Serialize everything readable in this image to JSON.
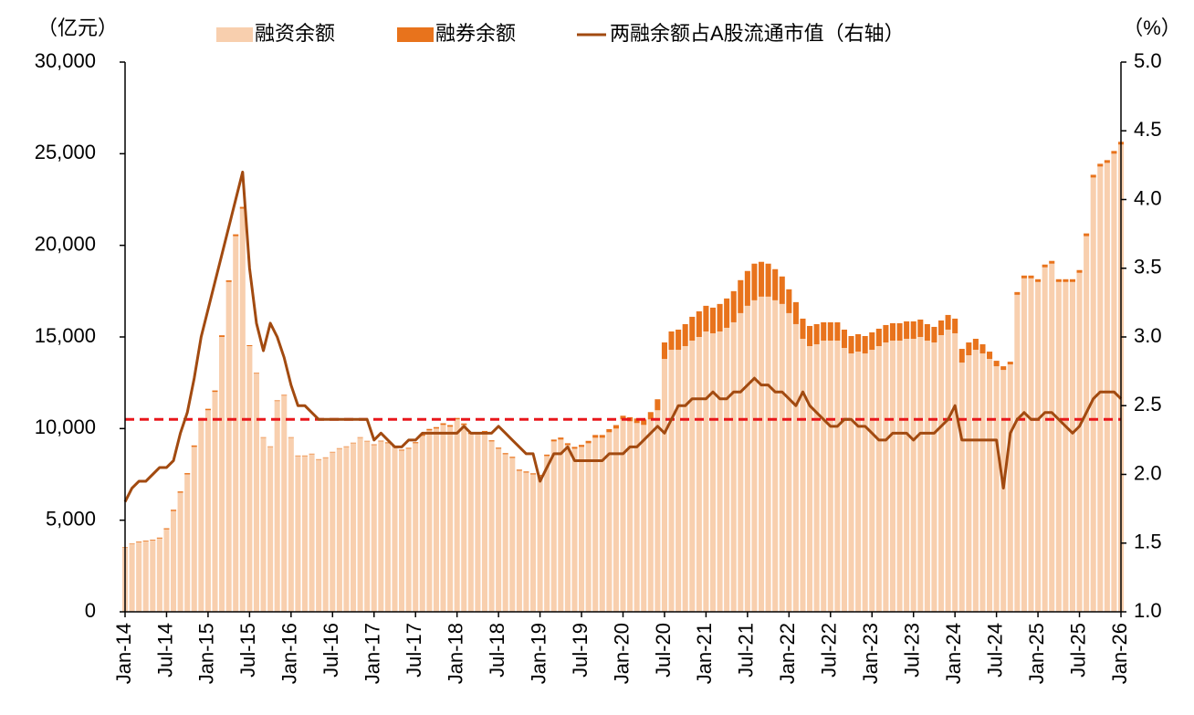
{
  "chart_data": {
    "type": "bar",
    "y_label": "（亿元）",
    "y2_label": "（%）",
    "categories": [
      "Jan-14",
      null,
      null,
      null,
      null,
      null,
      "Jul-14",
      null,
      null,
      null,
      null,
      null,
      "Jan-15",
      null,
      null,
      null,
      null,
      null,
      "Jul-15",
      null,
      null,
      null,
      null,
      null,
      "Jan-16",
      null,
      null,
      null,
      null,
      null,
      "Jul-16",
      null,
      null,
      null,
      null,
      null,
      "Jan-17",
      null,
      null,
      null,
      null,
      null,
      "Jul-17",
      null,
      null,
      null,
      null,
      null,
      "Jan-18",
      null,
      null,
      null,
      null,
      null,
      "Jul-18",
      null,
      null,
      null,
      null,
      null,
      "Jan-19",
      null,
      null,
      null,
      null,
      null,
      "Jul-19",
      null,
      null,
      null,
      null,
      null,
      "Jan-20",
      null,
      null,
      null,
      null,
      null,
      "Jul-20",
      null,
      null,
      null,
      null,
      null,
      "Jan-21",
      null,
      null,
      null,
      null,
      null,
      "Jul-21",
      null,
      null,
      null,
      null,
      null,
      "Jan-22",
      null,
      null,
      null,
      null,
      null,
      "Jul-22",
      null,
      null,
      null,
      null,
      null,
      "Jan-23",
      null,
      null,
      null,
      null,
      null,
      "Jul-23",
      null,
      null,
      null,
      null,
      null,
      "Jan-24",
      null,
      null,
      null,
      null,
      null,
      "Jul-24",
      null,
      null,
      null,
      null,
      null,
      "Jan-25",
      null,
      null,
      null,
      null,
      null,
      "Jul-25",
      null,
      null,
      null,
      null,
      null,
      "Jan-26"
    ],
    "series": [
      {
        "name": "融资余额",
        "type": "bar",
        "color": "#f8cfae",
        "values": [
          3500,
          3700,
          3800,
          3850,
          3900,
          4000,
          4500,
          5500,
          6500,
          7500,
          9000,
          10500,
          11000,
          12000,
          15000,
          18000,
          20500,
          22000,
          14500,
          13000,
          9500,
          9000,
          11500,
          11800,
          9500,
          8500,
          8500,
          8600,
          8300,
          8400,
          8700,
          8900,
          9000,
          9200,
          9500,
          9300,
          9100,
          9300,
          9200,
          9000,
          8800,
          8900,
          9200,
          9600,
          9900,
          10000,
          10200,
          10100,
          10500,
          10200,
          9700,
          9700,
          9800,
          9300,
          8900,
          8600,
          8400,
          7700,
          7600,
          7500,
          7400,
          8500,
          9300,
          9400,
          9100,
          8900,
          9000,
          9200,
          9500,
          9500,
          9800,
          10000,
          10500,
          10400,
          10300,
          10200,
          10500,
          11000,
          13800,
          14300,
          14300,
          14500,
          14800,
          15000,
          15300,
          15200,
          15300,
          15500,
          15800,
          16300,
          16700,
          17000,
          17200,
          17200,
          17000,
          16800,
          16300,
          15700,
          14900,
          14500,
          14600,
          14800,
          14800,
          14800,
          14400,
          14100,
          14200,
          14100,
          14300,
          14500,
          14700,
          14800,
          14800,
          14900,
          14900,
          15000,
          14800,
          14700,
          15100,
          15400,
          15200,
          13600,
          14000,
          14300,
          14100,
          13800,
          13400,
          13200,
          13500,
          17300,
          18200,
          18200,
          18000,
          18800,
          19000,
          18000,
          18000,
          18000,
          18500,
          20500,
          23700,
          24300,
          24500,
          25000,
          25500
        ]
      },
      {
        "name": "融券余额",
        "type": "bar",
        "color": "#e8731c",
        "values": [
          30,
          30,
          40,
          40,
          40,
          50,
          60,
          70,
          70,
          70,
          80,
          80,
          80,
          80,
          90,
          90,
          100,
          100,
          50,
          40,
          30,
          30,
          40,
          40,
          30,
          30,
          30,
          30,
          30,
          30,
          30,
          30,
          30,
          30,
          30,
          30,
          40,
          40,
          50,
          50,
          50,
          50,
          60,
          70,
          80,
          80,
          90,
          90,
          80,
          80,
          70,
          70,
          70,
          60,
          60,
          60,
          60,
          60,
          60,
          60,
          70,
          80,
          100,
          110,
          100,
          100,
          110,
          130,
          150,
          150,
          170,
          190,
          200,
          220,
          250,
          300,
          400,
          600,
          900,
          1000,
          1100,
          1200,
          1300,
          1400,
          1400,
          1400,
          1500,
          1600,
          1700,
          1800,
          1900,
          2000,
          1900,
          1800,
          1700,
          1500,
          1300,
          1200,
          1100,
          1100,
          1100,
          1000,
          1000,
          1000,
          1000,
          950,
          950,
          950,
          950,
          950,
          950,
          950,
          950,
          950,
          950,
          950,
          900,
          850,
          800,
          800,
          800,
          750,
          700,
          600,
          500,
          400,
          300,
          200,
          150,
          150,
          150,
          150,
          150,
          150,
          150,
          150,
          150,
          150,
          150,
          150,
          150,
          150,
          150,
          150,
          150
        ]
      },
      {
        "name": "两融余额占A股流通市值（右轴）",
        "type": "line",
        "axis": "y2",
        "color": "#a24a10",
        "values": [
          1.8,
          1.9,
          1.95,
          1.95,
          2.0,
          2.05,
          2.05,
          2.1,
          2.3,
          2.45,
          2.7,
          3.0,
          3.2,
          3.4,
          3.6,
          3.8,
          4.0,
          4.2,
          3.5,
          3.1,
          2.9,
          3.1,
          3.0,
          2.85,
          2.65,
          2.5,
          2.5,
          2.45,
          2.4,
          2.4,
          2.4,
          2.4,
          2.4,
          2.4,
          2.4,
          2.4,
          2.25,
          2.3,
          2.25,
          2.2,
          2.2,
          2.25,
          2.25,
          2.3,
          2.3,
          2.3,
          2.3,
          2.3,
          2.3,
          2.35,
          2.3,
          2.3,
          2.3,
          2.3,
          2.35,
          2.3,
          2.25,
          2.2,
          2.15,
          2.15,
          1.95,
          2.05,
          2.15,
          2.15,
          2.2,
          2.1,
          2.1,
          2.1,
          2.1,
          2.1,
          2.15,
          2.15,
          2.15,
          2.2,
          2.2,
          2.25,
          2.3,
          2.35,
          2.3,
          2.4,
          2.5,
          2.5,
          2.55,
          2.55,
          2.55,
          2.6,
          2.55,
          2.55,
          2.6,
          2.6,
          2.65,
          2.7,
          2.65,
          2.65,
          2.6,
          2.6,
          2.55,
          2.5,
          2.6,
          2.5,
          2.45,
          2.4,
          2.35,
          2.35,
          2.4,
          2.4,
          2.35,
          2.35,
          2.3,
          2.25,
          2.25,
          2.3,
          2.3,
          2.3,
          2.25,
          2.3,
          2.3,
          2.3,
          2.35,
          2.4,
          2.5,
          2.25,
          2.25,
          2.25,
          2.25,
          2.25,
          2.25,
          1.9,
          2.3,
          2.4,
          2.45,
          2.4,
          2.4,
          2.45,
          2.45,
          2.4,
          2.35,
          2.3,
          2.35,
          2.45,
          2.55,
          2.6,
          2.6,
          2.6,
          2.55
        ]
      }
    ],
    "reference_line": {
      "value": 2.4,
      "axis": "y2",
      "color": "#e8161b",
      "style": "dashed"
    },
    "ylim": [
      0,
      30000
    ],
    "yticks": [
      0,
      {
        "value": 5000,
        "label": "5,000"
      },
      {
        "value": 10000,
        "label": "10,000"
      },
      {
        "value": 15000,
        "label": "15,000"
      },
      {
        "value": 20000,
        "label": "20,000"
      },
      {
        "value": 25000,
        "label": "25,000"
      },
      {
        "value": 30000,
        "label": "30,000"
      }
    ],
    "y2lim": [
      1,
      5
    ],
    "y2ticks": [
      {
        "value": 1,
        "label": "1.0"
      },
      1.5,
      {
        "value": 2,
        "label": "2.0"
      },
      2.5,
      {
        "value": 3,
        "label": "3.0"
      },
      3.5,
      {
        "value": 4,
        "label": "4.0"
      },
      4.5,
      {
        "value": 5,
        "label": "5.0"
      }
    ],
    "grid": false,
    "legend": "top"
  }
}
